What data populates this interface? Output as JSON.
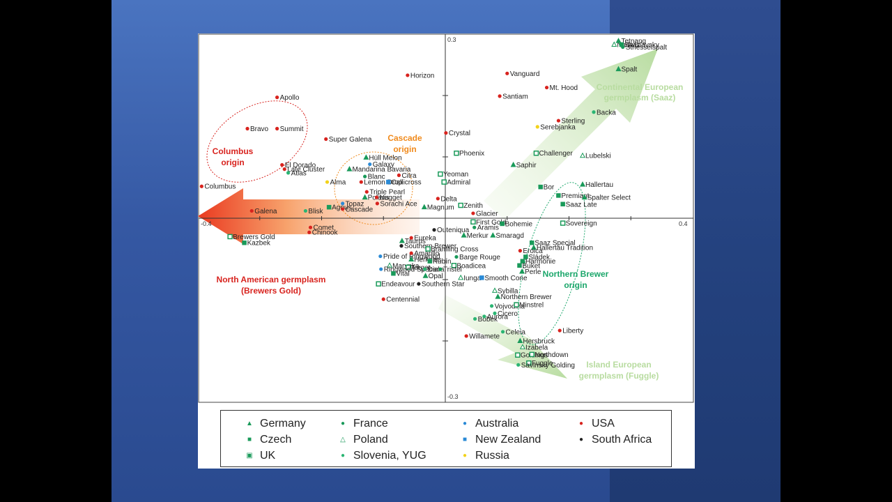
{
  "chart_data": {
    "type": "scatter",
    "axes": {
      "x_tick_labels": {
        "left": "-0.4",
        "right": "0.4"
      },
      "y_tick_labels": {
        "top": "0.3",
        "bottom": "-0.3"
      },
      "xlim": [
        -0.4,
        0.4
      ],
      "ylim": [
        -0.3,
        0.3
      ]
    },
    "groups": [
      {
        "name": "Germany",
        "marker": "triangle-filled",
        "color": "#1a9a5a"
      },
      {
        "name": "Czech",
        "marker": "square-filled",
        "color": "#1a9a5a"
      },
      {
        "name": "UK",
        "marker": "square-dotted",
        "color": "#1a9a5a"
      },
      {
        "name": "France",
        "marker": "circle",
        "color": "#1a9a5a"
      },
      {
        "name": "Poland",
        "marker": "triangle-open",
        "color": "#1a9a5a"
      },
      {
        "name": "Slovenia, YUG",
        "marker": "circle",
        "color": "#2bb573"
      },
      {
        "name": "Australia",
        "marker": "circle",
        "color": "#2a8ad6"
      },
      {
        "name": "New Zealand",
        "marker": "square-filled",
        "color": "#2a8ad6"
      },
      {
        "name": "Russia",
        "marker": "circle",
        "color": "#f2d21a"
      },
      {
        "name": "USA",
        "marker": "circle",
        "color": "#d8231e"
      },
      {
        "name": "South Africa",
        "marker": "circle",
        "color": "#222222"
      }
    ],
    "points": [
      {
        "label": "Horizon",
        "x": -0.061,
        "y": 0.233,
        "group": "USA"
      },
      {
        "label": "Vanguard",
        "x": 0.1,
        "y": 0.236,
        "group": "USA"
      },
      {
        "label": "Mt. Hood",
        "x": 0.164,
        "y": 0.213,
        "group": "USA"
      },
      {
        "label": "Santiam",
        "x": 0.088,
        "y": 0.199,
        "group": "USA"
      },
      {
        "label": "Apollo",
        "x": -0.272,
        "y": 0.197,
        "group": "USA"
      },
      {
        "label": "Bravo",
        "x": -0.32,
        "y": 0.146,
        "group": "USA"
      },
      {
        "label": "Summit",
        "x": -0.272,
        "y": 0.146,
        "group": "USA"
      },
      {
        "label": "Super Galena",
        "x": -0.193,
        "y": 0.129,
        "group": "USA"
      },
      {
        "label": "Crystal",
        "x": 0.001,
        "y": 0.139,
        "group": "USA"
      },
      {
        "label": "Sterling",
        "x": 0.183,
        "y": 0.159,
        "group": "USA"
      },
      {
        "label": "Serebjanka",
        "x": 0.149,
        "y": 0.149,
        "group": "Russia"
      },
      {
        "label": "Backa",
        "x": 0.24,
        "y": 0.173,
        "group": "Slovenia, YUG"
      },
      {
        "label": "Spalt",
        "x": 0.28,
        "y": 0.243,
        "group": "Germany"
      },
      {
        "label": "Nadwislavsky",
        "x": 0.273,
        "y": 0.283,
        "group": "Poland"
      },
      {
        "label": "Tetnang",
        "x": 0.28,
        "y": 0.289,
        "group": "Germany"
      },
      {
        "label": "Saaz",
        "x": 0.285,
        "y": 0.283,
        "group": "Czech"
      },
      {
        "label": "Striesselspalt",
        "x": 0.287,
        "y": 0.279,
        "group": "France"
      },
      {
        "label": "Phoenix",
        "x": 0.018,
        "y": 0.106,
        "group": "UK"
      },
      {
        "label": "Challenger",
        "x": 0.147,
        "y": 0.106,
        "group": "UK"
      },
      {
        "label": "Lubelski",
        "x": 0.222,
        "y": 0.102,
        "group": "Poland"
      },
      {
        "label": "Saphir",
        "x": 0.11,
        "y": 0.087,
        "group": "Germany"
      },
      {
        "label": "Hüll Melon",
        "x": -0.128,
        "y": 0.099,
        "group": "Germany"
      },
      {
        "label": "Galaxy",
        "x": -0.122,
        "y": 0.088,
        "group": "Australia"
      },
      {
        "label": "El Dorado",
        "x": -0.264,
        "y": 0.087,
        "group": "USA"
      },
      {
        "label": "Late Cluster",
        "x": -0.26,
        "y": 0.08,
        "group": "USA"
      },
      {
        "label": "Atlas",
        "x": -0.254,
        "y": 0.074,
        "group": "Slovenia, YUG"
      },
      {
        "label": "Mandarina Bavaria",
        "x": -0.155,
        "y": 0.08,
        "group": "Germany"
      },
      {
        "label": "Yeoman",
        "x": -0.008,
        "y": 0.072,
        "group": "UK"
      },
      {
        "label": "Blanc",
        "x": -0.13,
        "y": 0.068,
        "group": "France"
      },
      {
        "label": "Citra",
        "x": -0.075,
        "y": 0.07,
        "group": "USA"
      },
      {
        "label": "Alma",
        "x": -0.191,
        "y": 0.059,
        "group": "Russia"
      },
      {
        "label": "Lemon Drop",
        "x": -0.136,
        "y": 0.059,
        "group": "USA"
      },
      {
        "label": "Callicross",
        "x": -0.092,
        "y": 0.059,
        "group": "New Zealand"
      },
      {
        "label": "Admiral",
        "x": -0.002,
        "y": 0.059,
        "group": "UK"
      },
      {
        "label": "Columbus",
        "x": -0.394,
        "y": 0.052,
        "group": "USA"
      },
      {
        "label": "Bor",
        "x": 0.154,
        "y": 0.051,
        "group": "Czech"
      },
      {
        "label": "Hallertau",
        "x": 0.222,
        "y": 0.055,
        "group": "Germany"
      },
      {
        "label": "Triple Pearl",
        "x": -0.127,
        "y": 0.043,
        "group": "USA"
      },
      {
        "label": "Premiant",
        "x": 0.183,
        "y": 0.037,
        "group": "Czech"
      },
      {
        "label": "Spalter Select",
        "x": 0.225,
        "y": 0.034,
        "group": "Germany"
      },
      {
        "label": "Polaris",
        "x": -0.13,
        "y": 0.034,
        "group": "Germany"
      },
      {
        "label": "Nugget",
        "x": -0.111,
        "y": 0.034,
        "group": "USA"
      },
      {
        "label": "Delta",
        "x": -0.012,
        "y": 0.032,
        "group": "USA"
      },
      {
        "label": "Topaz",
        "x": -0.166,
        "y": 0.024,
        "group": "Australia"
      },
      {
        "label": "Sorachi Ace",
        "x": -0.11,
        "y": 0.024,
        "group": "USA"
      },
      {
        "label": "Zenith",
        "x": 0.025,
        "y": 0.021,
        "group": "UK"
      },
      {
        "label": "Saaz Late",
        "x": 0.19,
        "y": 0.023,
        "group": "Czech"
      },
      {
        "label": "Galena",
        "x": -0.313,
        "y": 0.012,
        "group": "USA"
      },
      {
        "label": "Blisk",
        "x": -0.226,
        "y": 0.012,
        "group": "Slovenia, YUG"
      },
      {
        "label": "Agnus",
        "x": -0.188,
        "y": 0.018,
        "group": "Czech"
      },
      {
        "label": "Cascade",
        "x": -0.166,
        "y": 0.015,
        "group": "USA"
      },
      {
        "label": "Magnum",
        "x": -0.034,
        "y": 0.018,
        "group": "Germany"
      },
      {
        "label": "Glacier",
        "x": 0.045,
        "y": 0.008,
        "group": "USA"
      },
      {
        "label": "Comet",
        "x": -0.218,
        "y": -0.015,
        "group": "USA"
      },
      {
        "label": "Chinook",
        "x": -0.22,
        "y": -0.023,
        "group": "USA"
      },
      {
        "label": "First Gold",
        "x": 0.045,
        "y": -0.006,
        "group": "UK"
      },
      {
        "label": "Aramis",
        "x": 0.047,
        "y": -0.015,
        "group": "France"
      },
      {
        "label": "Bohemie",
        "x": 0.092,
        "y": -0.009,
        "group": "Czech"
      },
      {
        "label": "Sovereign",
        "x": 0.19,
        "y": -0.008,
        "group": "UK"
      },
      {
        "label": "Outeniqua",
        "x": -0.018,
        "y": -0.019,
        "group": "South Africa"
      },
      {
        "label": "Brewers Gold",
        "x": -0.348,
        "y": -0.03,
        "group": "UK"
      },
      {
        "label": "Kazbek",
        "x": -0.325,
        "y": -0.04,
        "group": "Czech"
      },
      {
        "label": "Merkur",
        "x": 0.03,
        "y": -0.028,
        "group": "Germany"
      },
      {
        "label": "Smaragd",
        "x": 0.077,
        "y": -0.028,
        "group": "Germany"
      },
      {
        "label": "Eureka",
        "x": -0.055,
        "y": -0.032,
        "group": "USA"
      },
      {
        "label": "Taurus",
        "x": -0.07,
        "y": -0.037,
        "group": "Germany"
      },
      {
        "label": "Saaz Special",
        "x": 0.14,
        "y": -0.04,
        "group": "Czech"
      },
      {
        "label": "Southern Brewer",
        "x": -0.071,
        "y": -0.045,
        "group": "South Africa"
      },
      {
        "label": "Hallertau Tradition",
        "x": 0.143,
        "y": -0.048,
        "group": "Germany"
      },
      {
        "label": "Bramling Cross",
        "x": -0.028,
        "y": -0.05,
        "group": "UK"
      },
      {
        "label": "Eroica",
        "x": 0.121,
        "y": -0.053,
        "group": "USA"
      },
      {
        "label": "Pride of Ringwood",
        "x": -0.105,
        "y": -0.062,
        "group": "Australia"
      },
      {
        "label": "Amarillo",
        "x": -0.055,
        "y": -0.057,
        "group": "USA"
      },
      {
        "label": "Barge Rouge",
        "x": 0.018,
        "y": -0.063,
        "group": "France"
      },
      {
        "label": "Sládek",
        "x": 0.13,
        "y": -0.063,
        "group": "Czech"
      },
      {
        "label": "Herkules",
        "x": -0.055,
        "y": -0.067,
        "group": "Germany"
      },
      {
        "label": "Rubín",
        "x": -0.025,
        "y": -0.07,
        "group": "Czech"
      },
      {
        "label": "Harmonie",
        "x": 0.125,
        "y": -0.07,
        "group": "Czech"
      },
      {
        "label": "Marynka",
        "x": -0.09,
        "y": -0.077,
        "group": "Poland"
      },
      {
        "label": "Boadicea",
        "x": 0.014,
        "y": -0.077,
        "group": "UK"
      },
      {
        "label": "Target",
        "x": -0.06,
        "y": -0.08,
        "group": "UK"
      },
      {
        "label": "Buket",
        "x": 0.12,
        "y": -0.077,
        "group": "Czech"
      },
      {
        "label": "Ringwood Special",
        "x": -0.104,
        "y": -0.083,
        "group": "Australia"
      },
      {
        "label": "Dana",
        "x": -0.033,
        "y": -0.083,
        "group": "Slovenia, YUG"
      },
      {
        "label": "Tristel",
        "x": -0.008,
        "y": -0.083,
        "group": "France"
      },
      {
        "label": "Perle",
        "x": 0.124,
        "y": -0.087,
        "group": "Germany"
      },
      {
        "label": "Vital",
        "x": -0.084,
        "y": -0.09,
        "group": "Czech"
      },
      {
        "label": "Opal",
        "x": -0.032,
        "y": -0.094,
        "group": "Germany"
      },
      {
        "label": "Iunga",
        "x": 0.025,
        "y": -0.097,
        "group": "Poland"
      },
      {
        "label": "Smooth Cone",
        "x": 0.059,
        "y": -0.097,
        "group": "New Zealand"
      },
      {
        "label": "Endeavour",
        "x": -0.108,
        "y": -0.107,
        "group": "UK"
      },
      {
        "label": "Southern Star",
        "x": -0.043,
        "y": -0.107,
        "group": "South Africa"
      },
      {
        "label": "Sybilla",
        "x": 0.08,
        "y": -0.118,
        "group": "Poland"
      },
      {
        "label": "Northern Brewer",
        "x": 0.085,
        "y": -0.128,
        "group": "Germany"
      },
      {
        "label": "Centennial",
        "x": -0.1,
        "y": -0.132,
        "group": "USA"
      },
      {
        "label": "Vojvodina",
        "x": 0.075,
        "y": -0.143,
        "group": "Slovenia, YUG"
      },
      {
        "label": "Minstrel",
        "x": 0.115,
        "y": -0.141,
        "group": "UK"
      },
      {
        "label": "Cicero",
        "x": 0.08,
        "y": -0.155,
        "group": "Slovenia, YUG"
      },
      {
        "label": "Bobek",
        "x": 0.048,
        "y": -0.164,
        "group": "Slovenia, YUG"
      },
      {
        "label": "Aurora",
        "x": 0.063,
        "y": -0.16,
        "group": "Slovenia, YUG"
      },
      {
        "label": "Celeia",
        "x": 0.093,
        "y": -0.185,
        "group": "Slovenia, YUG"
      },
      {
        "label": "Liberty",
        "x": 0.185,
        "y": -0.183,
        "group": "USA"
      },
      {
        "label": "Willamete",
        "x": 0.034,
        "y": -0.192,
        "group": "USA"
      },
      {
        "label": "Hersbruck",
        "x": 0.121,
        "y": -0.2,
        "group": "Germany"
      },
      {
        "label": "Izabela",
        "x": 0.125,
        "y": -0.21,
        "group": "Poland"
      },
      {
        "label": "Goldings",
        "x": 0.117,
        "y": -0.223,
        "group": "UK"
      },
      {
        "label": "Northdown",
        "x": 0.14,
        "y": -0.222,
        "group": "UK"
      },
      {
        "label": "Fuggle",
        "x": 0.135,
        "y": -0.236,
        "group": "UK"
      },
      {
        "label": "Savinsky Golding",
        "x": 0.118,
        "y": -0.239,
        "group": "Slovenia, YUG"
      }
    ],
    "annotations": [
      {
        "text": "Continental European germplasm (Saaz)",
        "color": "#b8dca0"
      },
      {
        "text": "Columbus origin",
        "color": "#d8231e"
      },
      {
        "text": "Cascade origin",
        "color": "#f08a1c"
      },
      {
        "text": "North American germplasm (Brewers Gold)",
        "color": "#d8231e"
      },
      {
        "text": "Northern Brewer origin",
        "color": "#1aa66a"
      },
      {
        "text": "Island European germplasm (Fuggle)",
        "color": "#b8dca0"
      }
    ]
  },
  "legend": {
    "items": [
      {
        "label": "Germany",
        "marker": "▲",
        "color": "#1a9a5a"
      },
      {
        "label": "Czech",
        "marker": "■",
        "color": "#1a9a5a"
      },
      {
        "label": "UK",
        "marker": "▣",
        "color": "#1a9a5a"
      },
      {
        "label": "France",
        "marker": "●",
        "color": "#1a9a5a"
      },
      {
        "label": "Poland",
        "marker": "△",
        "color": "#1a9a5a"
      },
      {
        "label": "Slovenia, YUG",
        "marker": "●",
        "color": "#2bb573"
      },
      {
        "label": "Australia",
        "marker": "●",
        "color": "#2a8ad6"
      },
      {
        "label": "New Zealand",
        "marker": "■",
        "color": "#2a8ad6"
      },
      {
        "label": "Russia",
        "marker": "●",
        "color": "#f2d21a"
      },
      {
        "label": "USA",
        "marker": "●",
        "color": "#d8231e"
      },
      {
        "label": "South Africa",
        "marker": "●",
        "color": "#222222"
      }
    ]
  }
}
